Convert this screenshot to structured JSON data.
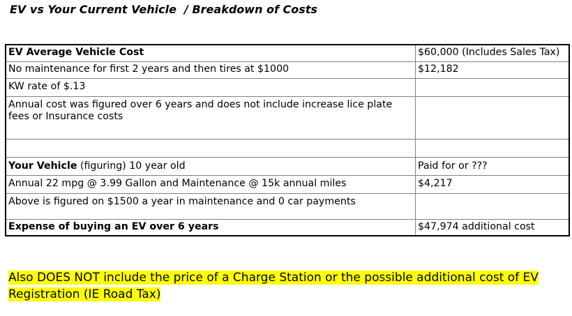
{
  "title": "EV vs Your Current Vehicle  / Breakdown of Costs",
  "rows": [
    {
      "label_bold": "EV Average Vehicle Cost",
      "label_rest": "",
      "value": "$60,000 (Includes Sales Tax)"
    },
    {
      "label_bold": "",
      "label_rest": "No maintenance for first 2 years and then tires at $1000",
      "value": "$12,182"
    },
    {
      "label_bold": "",
      "label_rest": "KW rate of $.13",
      "value": ""
    },
    {
      "label_bold": "",
      "label_rest": "Annual cost was figured over 6 years and does not include increase lice plate fees or Insurance costs",
      "value": ""
    },
    {
      "label_bold": "",
      "label_rest": "",
      "value": ""
    },
    {
      "label_bold": "Your Vehicle",
      "label_rest": " (figuring) 10 year old",
      "value": "Paid for or ???"
    },
    {
      "label_bold": "",
      "label_rest": "Annual 22 mpg  @ 3.99 Gallon and Maintenance @ 15k annual miles",
      "value": "$4,217"
    },
    {
      "label_bold": "",
      "label_rest": "Above is figured on $1500 a year in maintenance and 0 car payments",
      "value": ""
    },
    {
      "label_bold": "Expense of buying an EV over 6 years",
      "label_rest": "",
      "value": "$47,974 additional cost"
    }
  ],
  "footnote": "Also DOES NOT include the price of a Charge Station or the possible additional cost of EV Registration (IE Road Tax)"
}
